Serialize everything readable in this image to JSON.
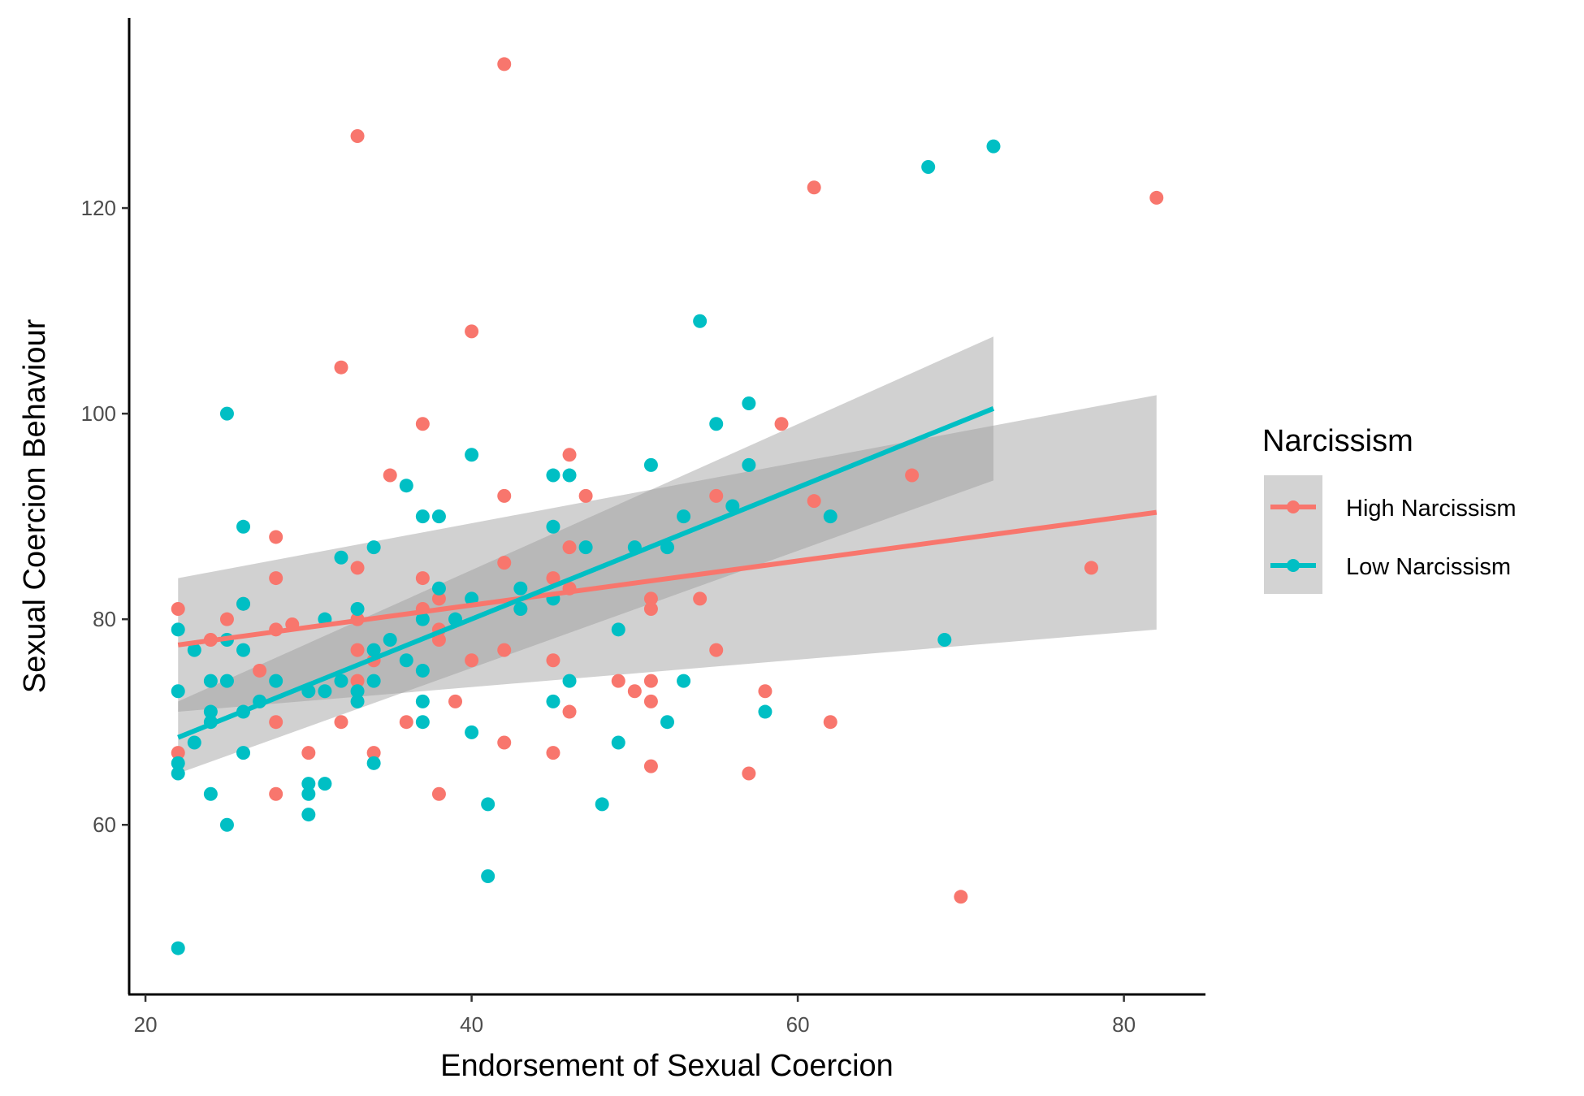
{
  "chart_data": {
    "type": "scatter",
    "title": "",
    "xlabel": "Endorsement of Sexual Coercion",
    "ylabel": "Sexual Coercion Behaviour",
    "xlim": [
      19,
      85
    ],
    "ylim": [
      43.5,
      138.5
    ],
    "xticks": [
      20,
      40,
      60,
      80
    ],
    "yticks": [
      60,
      80,
      100,
      120
    ],
    "grid": false,
    "legend": {
      "title": "Narcissism",
      "position": "right"
    },
    "series": [
      {
        "name": "High Narcissism",
        "color": "#F8766D",
        "points": [
          [
            22,
            81
          ],
          [
            22,
            67
          ],
          [
            24,
            78
          ],
          [
            25,
            80
          ],
          [
            26,
            81.5
          ],
          [
            27,
            75
          ],
          [
            28,
            88
          ],
          [
            28,
            84
          ],
          [
            28,
            79
          ],
          [
            28,
            70
          ],
          [
            28,
            63
          ],
          [
            29,
            79.5
          ],
          [
            30,
            67
          ],
          [
            32,
            104.5
          ],
          [
            32,
            70
          ],
          [
            33,
            127
          ],
          [
            33,
            85
          ],
          [
            33,
            80
          ],
          [
            33,
            77
          ],
          [
            33,
            74
          ],
          [
            34,
            76
          ],
          [
            34,
            67
          ],
          [
            35,
            94
          ],
          [
            36,
            70
          ],
          [
            37,
            99
          ],
          [
            37,
            84
          ],
          [
            37,
            81
          ],
          [
            38,
            82
          ],
          [
            38,
            79
          ],
          [
            38,
            78
          ],
          [
            38,
            63
          ],
          [
            39,
            72
          ],
          [
            40,
            108
          ],
          [
            40,
            76
          ],
          [
            42,
            134
          ],
          [
            42,
            92
          ],
          [
            42,
            85.5
          ],
          [
            42,
            77
          ],
          [
            42,
            68
          ],
          [
            43,
            81
          ],
          [
            45,
            84
          ],
          [
            45,
            76
          ],
          [
            45,
            67
          ],
          [
            46,
            96
          ],
          [
            46,
            87
          ],
          [
            46,
            83
          ],
          [
            46,
            71
          ],
          [
            47,
            92
          ],
          [
            49,
            74
          ],
          [
            50,
            73
          ],
          [
            51,
            82
          ],
          [
            51,
            81
          ],
          [
            51,
            74
          ],
          [
            51,
            72
          ],
          [
            51,
            65.7
          ],
          [
            54,
            82
          ],
          [
            55,
            92
          ],
          [
            55,
            77
          ],
          [
            57,
            65
          ],
          [
            58,
            73
          ],
          [
            59,
            99
          ],
          [
            61,
            122
          ],
          [
            61,
            91.5
          ],
          [
            62,
            70
          ],
          [
            67,
            94
          ],
          [
            70,
            53
          ],
          [
            78,
            85
          ],
          [
            82,
            121
          ]
        ],
        "trend": {
          "x": [
            22,
            82
          ],
          "y": [
            77.5,
            90.4
          ],
          "ci_lower": [
            71.0,
            79.0
          ],
          "ci_upper": [
            84.0,
            101.8
          ]
        }
      },
      {
        "name": "Low Narcissism",
        "color": "#00BFC4",
        "points": [
          [
            22,
            79
          ],
          [
            22,
            73
          ],
          [
            22,
            66
          ],
          [
            22,
            65
          ],
          [
            22,
            48
          ],
          [
            23,
            77
          ],
          [
            23,
            68
          ],
          [
            24,
            74
          ],
          [
            24,
            71
          ],
          [
            24,
            70
          ],
          [
            24,
            63
          ],
          [
            25,
            100
          ],
          [
            25,
            78
          ],
          [
            25,
            74
          ],
          [
            25,
            60
          ],
          [
            26,
            89
          ],
          [
            26,
            81.5
          ],
          [
            26,
            77
          ],
          [
            26,
            71
          ],
          [
            26,
            67
          ],
          [
            27,
            72
          ],
          [
            28,
            74
          ],
          [
            30,
            73
          ],
          [
            30,
            64
          ],
          [
            30,
            63
          ],
          [
            30,
            61
          ],
          [
            31,
            80
          ],
          [
            31,
            73
          ],
          [
            31,
            64
          ],
          [
            32,
            86
          ],
          [
            32,
            74
          ],
          [
            33,
            81
          ],
          [
            33,
            73
          ],
          [
            33,
            72
          ],
          [
            34,
            87
          ],
          [
            34,
            77
          ],
          [
            34,
            74
          ],
          [
            34,
            66
          ],
          [
            35,
            78
          ],
          [
            36,
            93
          ],
          [
            36,
            76
          ],
          [
            37,
            90
          ],
          [
            37,
            80
          ],
          [
            37,
            75
          ],
          [
            37,
            72
          ],
          [
            37,
            70
          ],
          [
            38,
            90
          ],
          [
            38,
            83
          ],
          [
            39,
            80
          ],
          [
            40,
            96
          ],
          [
            40,
            82
          ],
          [
            40,
            69
          ],
          [
            41,
            62
          ],
          [
            41,
            55
          ],
          [
            43,
            83
          ],
          [
            43,
            81
          ],
          [
            45,
            94
          ],
          [
            45,
            89
          ],
          [
            45,
            82
          ],
          [
            45,
            72
          ],
          [
            46,
            94
          ],
          [
            46,
            74
          ],
          [
            47,
            87
          ],
          [
            48,
            62
          ],
          [
            49,
            79
          ],
          [
            49,
            68
          ],
          [
            50,
            87
          ],
          [
            51,
            95
          ],
          [
            52,
            87
          ],
          [
            52,
            70
          ],
          [
            53,
            90
          ],
          [
            53,
            74
          ],
          [
            54,
            109
          ],
          [
            55,
            99
          ],
          [
            56,
            91
          ],
          [
            57,
            101
          ],
          [
            57,
            95
          ],
          [
            58,
            71
          ],
          [
            62,
            90
          ],
          [
            68,
            124
          ],
          [
            69,
            78
          ],
          [
            72,
            126
          ]
        ],
        "trend": {
          "x": [
            22,
            72
          ],
          "y": [
            68.5,
            100.5
          ],
          "ci_lower": [
            65.0,
            93.5
          ],
          "ci_upper": [
            72.0,
            107.5
          ]
        }
      }
    ]
  }
}
